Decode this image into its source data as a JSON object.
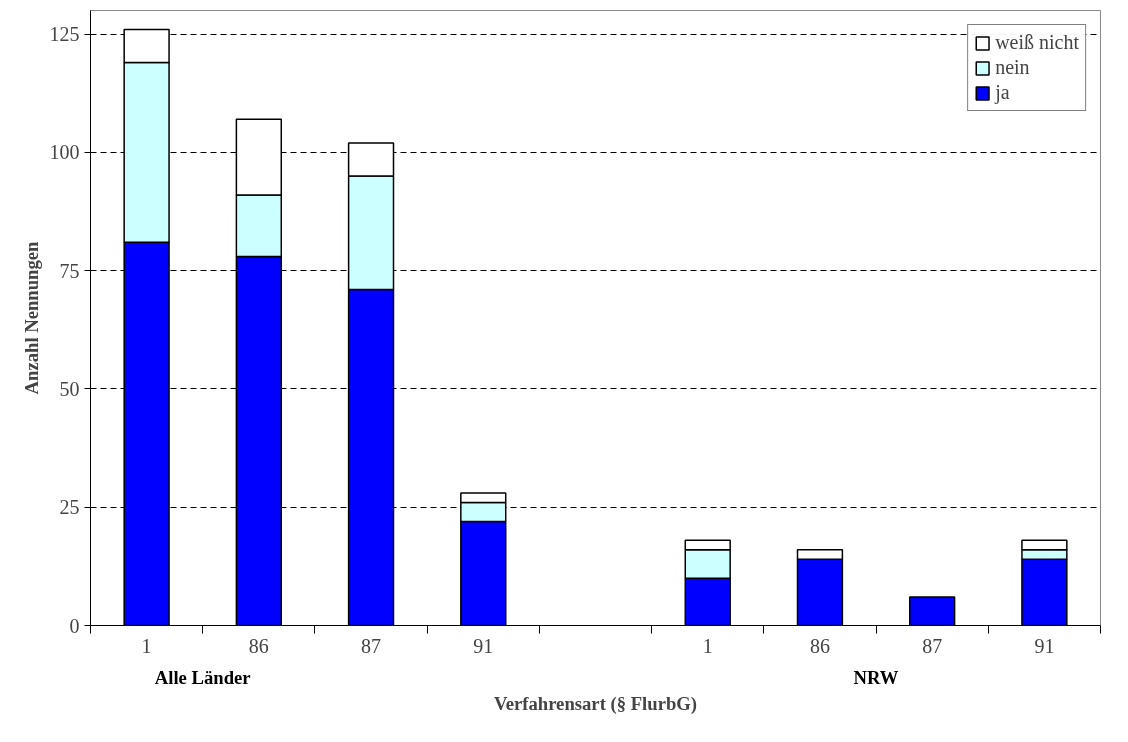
{
  "chart_data": {
    "type": "bar",
    "stacked": true,
    "xlabel": "Verfahrensart (§ FlurbG)",
    "ylabel": "Anzahl Nennungen",
    "categories": [
      "1",
      "86",
      "87",
      "91",
      null,
      "1",
      "86",
      "87",
      "91"
    ],
    "series": [
      {
        "name": "ja",
        "color": "#0000ff",
        "values": [
          81,
          78,
          71,
          22,
          null,
          10,
          14,
          6,
          14
        ]
      },
      {
        "name": "nein",
        "color": "#ccffff",
        "values": [
          38,
          13,
          24,
          4,
          null,
          6,
          null,
          null,
          2
        ]
      },
      {
        "name": "weiß nicht",
        "color": "#ffffff",
        "values": [
          7,
          16,
          7,
          2,
          null,
          2,
          2,
          null,
          2
        ]
      }
    ],
    "ylim": [
      0,
      130
    ],
    "yticks": [
      0,
      25,
      50,
      75,
      100,
      125
    ],
    "grid": "y",
    "legend": "top right",
    "annotations": [
      "Alle Länder",
      "NRW"
    ]
  }
}
